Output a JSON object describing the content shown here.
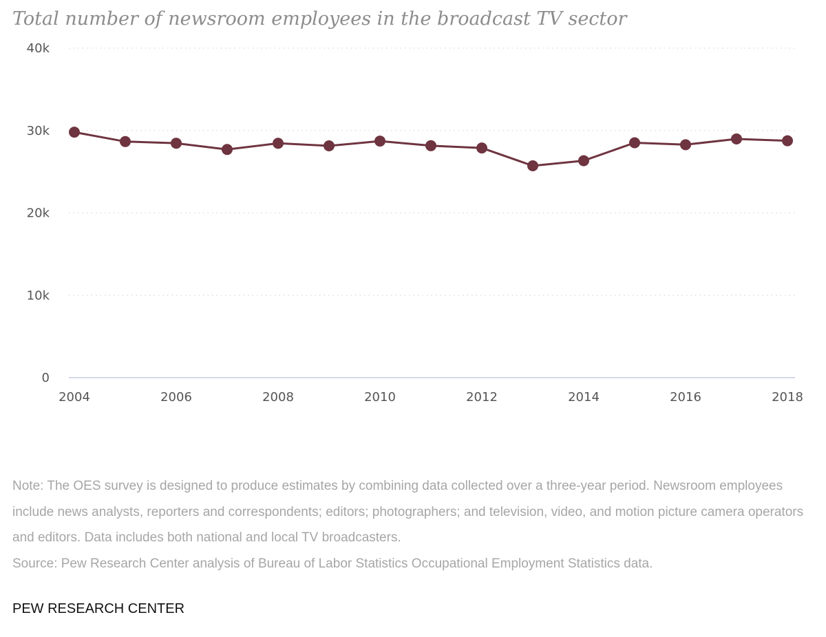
{
  "chart_data": {
    "type": "line",
    "title": "Total number of newsroom employees in the broadcast TV sector",
    "xlabel": "",
    "ylabel": "",
    "x": [
      2004,
      2005,
      2006,
      2007,
      2008,
      2009,
      2010,
      2011,
      2012,
      2013,
      2014,
      2015,
      2016,
      2017,
      2018
    ],
    "series": [
      {
        "values": [
          29800,
          28660,
          28460,
          27700,
          28450,
          28140,
          28720,
          28160,
          27880,
          25720,
          26340,
          28520,
          28280,
          28980,
          28760
        ]
      }
    ],
    "ylim": [
      0,
      40000
    ],
    "y_ticks": [
      0,
      10000,
      20000,
      30000,
      40000
    ],
    "y_tick_labels": [
      "0",
      "10k",
      "20k",
      "30k",
      "40k"
    ],
    "x_ticks": [
      2004,
      2006,
      2008,
      2010,
      2012,
      2014,
      2016,
      2018
    ],
    "x_tick_labels": [
      "2004",
      "2006",
      "2008",
      "2010",
      "2012",
      "2014",
      "2016",
      "2018"
    ],
    "grid": "horizontal-dotted",
    "legend": "none",
    "line_color": "#6e343f",
    "gridline_color": "#d9d9d9",
    "baseline_color": "#c7cde0"
  },
  "note": {
    "text": "Note: The OES survey is designed to produce estimates by combining data collected over a three-year period. Newsroom employees include news analysts, reporters and correspondents; editors; photographers; and television, video, and motion picture camera operators and editors. Data includes both national and local TV broadcasters.",
    "source": "Source: Pew Research Center analysis of Bureau of Labor Statistics Occupational Employment Statistics data."
  },
  "brand": "PEW RESEARCH CENTER"
}
